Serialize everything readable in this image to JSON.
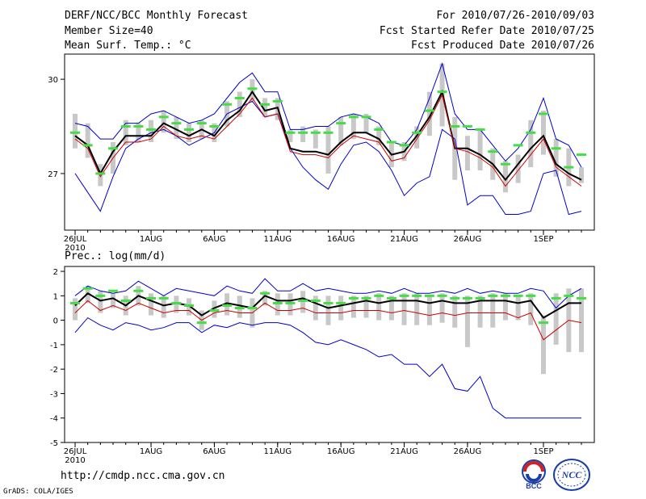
{
  "header": {
    "title": "DERF/NCC/BCC Monthly Forecast",
    "member_size": "Member Size=40",
    "for_range": "For 2010/07/26-2010/09/03",
    "fcst_started": "Fcst Started Refer Date 2010/07/25",
    "fcst_produced": "Fcst Produced Date 2010/07/26"
  },
  "footer": {
    "url": "http://cmdp.ncc.cma.gov.cn",
    "grads": "GrADS: COLA/IGES"
  },
  "logos": {
    "bcc_label": "BCC",
    "ncc_label": "NCC"
  },
  "colors": {
    "mean": "#000000",
    "median": "#cc0000",
    "envelope": "#0000cc",
    "bar": "#c8c8c8",
    "dash": "#44dd44"
  },
  "chart_data": [
    {
      "type": "line",
      "title": "Mean Surf. Temp.: °C",
      "days": 40,
      "ylim": [
        25.2,
        30.8
      ],
      "yticks": [
        27,
        30
      ],
      "x_tick_labels": [
        {
          "day": 0,
          "label": "26JUL"
        },
        {
          "day": 6,
          "label": "1AUG"
        },
        {
          "day": 11,
          "label": "6AUG"
        },
        {
          "day": 16,
          "label": "11AUG"
        },
        {
          "day": 21,
          "label": "16AUG"
        },
        {
          "day": 26,
          "label": "21AUG"
        },
        {
          "day": 31,
          "label": "26AUG"
        },
        {
          "day": 37,
          "label": "1SEP"
        }
      ],
      "year_label": "2010",
      "series": [
        {
          "name": "max",
          "values": [
            27.0,
            26.4,
            25.8,
            26.9,
            27.8,
            28.1,
            28.3,
            28.4,
            28.2,
            27.9,
            28.1,
            28.3,
            28.9,
            29.1,
            29.3,
            28.8,
            28.9,
            27.8,
            27.2,
            26.8,
            26.5,
            27.3,
            27.9,
            28.0,
            27.7,
            27.1,
            26.3,
            26.7,
            26.9,
            28.4,
            28.1,
            26.0,
            26.3,
            26.3,
            25.7,
            25.7,
            25.8,
            27.0,
            27.1,
            25.7,
            25.8
          ]
        },
        {
          "name": "min",
          "values": [
            28.6,
            28.5,
            28.1,
            28.1,
            28.6,
            28.6,
            28.9,
            29.0,
            28.8,
            28.6,
            28.7,
            28.9,
            29.4,
            29.9,
            30.2,
            29.6,
            29.6,
            28.4,
            28.4,
            28.5,
            28.5,
            28.8,
            28.9,
            28.8,
            28.6,
            28.0,
            27.9,
            28.4,
            29.4,
            30.5,
            28.9,
            28.4,
            28.4,
            27.9,
            27.4,
            27.8,
            28.4,
            29.4,
            28.1,
            27.9,
            27.2
          ]
        },
        {
          "name": "mean",
          "values": [
            28.2,
            27.9,
            27.0,
            27.7,
            28.2,
            28.2,
            28.2,
            28.6,
            28.4,
            28.2,
            28.4,
            28.2,
            28.7,
            29.0,
            29.6,
            29.0,
            29.1,
            27.8,
            27.7,
            27.7,
            27.6,
            28.0,
            28.3,
            28.3,
            28.1,
            27.6,
            27.7,
            28.2,
            28.8,
            29.6,
            27.8,
            27.8,
            27.6,
            27.3,
            26.8,
            27.3,
            27.8,
            28.2,
            27.3,
            27.0,
            26.8
          ]
        },
        {
          "name": "median",
          "values": [
            28.1,
            27.8,
            26.9,
            27.5,
            28.0,
            28.0,
            28.1,
            28.5,
            28.2,
            28.1,
            28.2,
            28.1,
            28.5,
            28.9,
            29.4,
            28.8,
            28.9,
            27.7,
            27.6,
            27.6,
            27.5,
            27.9,
            28.2,
            28.1,
            28.0,
            27.4,
            27.5,
            28.1,
            28.7,
            29.5,
            27.8,
            27.7,
            27.5,
            27.2,
            26.6,
            27.1,
            27.6,
            28.1,
            27.2,
            26.9,
            26.6
          ]
        },
        {
          "name": "ensemble_green",
          "values": [
            28.3,
            27.9,
            27.0,
            27.8,
            28.5,
            28.5,
            28.4,
            28.8,
            28.6,
            28.4,
            28.6,
            28.5,
            29.2,
            29.4,
            29.7,
            29.2,
            29.3,
            28.3,
            28.3,
            28.3,
            28.3,
            28.6,
            28.8,
            28.8,
            28.4,
            28.0,
            27.9,
            28.3,
            29.0,
            29.6,
            28.5,
            28.5,
            28.4,
            27.7,
            27.3,
            27.9,
            28.3,
            28.9,
            27.8,
            27.2,
            27.6
          ]
        }
      ],
      "bars": [
        {
          "low": 27.8,
          "high": 28.9
        },
        {
          "low": 27.5,
          "high": 28.6
        },
        {
          "low": 26.6,
          "high": 27.3
        },
        {
          "low": 27.0,
          "high": 28.0
        },
        {
          "low": 27.9,
          "high": 28.7
        },
        {
          "low": 28.0,
          "high": 28.6
        },
        {
          "low": 28.0,
          "high": 28.7
        },
        {
          "low": 28.3,
          "high": 29.0
        },
        {
          "low": 28.1,
          "high": 28.8
        },
        {
          "low": 28.0,
          "high": 28.6
        },
        {
          "low": 28.1,
          "high": 28.7
        },
        {
          "low": 28.0,
          "high": 28.6
        },
        {
          "low": 28.5,
          "high": 29.3
        },
        {
          "low": 28.8,
          "high": 29.6
        },
        {
          "low": 29.3,
          "high": 30.0
        },
        {
          "low": 28.8,
          "high": 29.4
        },
        {
          "low": 28.7,
          "high": 29.4
        },
        {
          "low": 28.0,
          "high": 28.4
        },
        {
          "low": 28.0,
          "high": 28.5
        },
        {
          "low": 27.8,
          "high": 28.4
        },
        {
          "low": 27.0,
          "high": 28.5
        },
        {
          "low": 27.9,
          "high": 28.8
        },
        {
          "low": 28.1,
          "high": 28.9
        },
        {
          "low": 28.3,
          "high": 28.9
        },
        {
          "low": 27.9,
          "high": 28.5
        },
        {
          "low": 27.2,
          "high": 28.0
        },
        {
          "low": 27.4,
          "high": 28.0
        },
        {
          "low": 27.8,
          "high": 28.5
        },
        {
          "low": 28.2,
          "high": 29.6
        },
        {
          "low": 28.5,
          "high": 30.5
        },
        {
          "low": 26.8,
          "high": 28.8
        },
        {
          "low": 27.1,
          "high": 28.2
        },
        {
          "low": 27.1,
          "high": 28.4
        },
        {
          "low": 26.8,
          "high": 27.8
        },
        {
          "low": 26.4,
          "high": 27.4
        },
        {
          "low": 26.7,
          "high": 27.6
        },
        {
          "low": 27.2,
          "high": 28.7
        },
        {
          "low": 27.6,
          "high": 29.0
        },
        {
          "low": 26.9,
          "high": 28.1
        },
        {
          "low": 26.6,
          "high": 27.8
        },
        {
          "low": 26.7,
          "high": 27.2
        }
      ]
    },
    {
      "type": "line",
      "title": "Prec.: log(mm/d)",
      "days": 40,
      "ylim": [
        -5,
        2.2
      ],
      "yticks": [
        -5,
        -4,
        -3,
        -2,
        -1,
        0,
        1,
        2
      ],
      "x_tick_labels": [
        {
          "day": 0,
          "label": "26JUL"
        },
        {
          "day": 6,
          "label": "1AUG"
        },
        {
          "day": 11,
          "label": "6AUG"
        },
        {
          "day": 16,
          "label": "11AUG"
        },
        {
          "day": 21,
          "label": "16AUG"
        },
        {
          "day": 26,
          "label": "21AUG"
        },
        {
          "day": 31,
          "label": "26AUG"
        },
        {
          "day": 37,
          "label": "1SEP"
        }
      ],
      "year_label": "2010",
      "series": [
        {
          "name": "max",
          "values": [
            1.0,
            1.4,
            1.2,
            1.1,
            1.2,
            1.6,
            1.3,
            1.0,
            1.3,
            1.2,
            1.1,
            1.0,
            1.4,
            1.2,
            1.1,
            1.7,
            1.2,
            1.2,
            1.5,
            1.2,
            1.3,
            1.2,
            1.1,
            1.1,
            1.2,
            1.1,
            1.3,
            1.1,
            1.1,
            1.2,
            1.1,
            1.3,
            1.1,
            1.2,
            1.1,
            1.1,
            1.3,
            1.2,
            0.5,
            1.0,
            1.3
          ]
        },
        {
          "name": "min",
          "values": [
            -0.5,
            0.1,
            -0.2,
            -0.4,
            -0.1,
            -0.2,
            -0.4,
            -0.3,
            -0.1,
            -0.1,
            -0.5,
            -0.2,
            -0.3,
            -0.1,
            -0.2,
            -0.1,
            -0.1,
            -0.2,
            -0.5,
            -0.9,
            -1.0,
            -0.8,
            -1.0,
            -1.2,
            -1.5,
            -1.4,
            -1.8,
            -1.8,
            -2.3,
            -1.8,
            -2.8,
            -2.9,
            -2.3,
            -3.6,
            -4.0,
            -4.0,
            -4.0,
            -4.0,
            -4.0,
            -4.0,
            -4.0
          ]
        },
        {
          "name": "mean",
          "values": [
            0.6,
            1.1,
            0.8,
            0.9,
            0.6,
            1.0,
            0.8,
            0.6,
            0.7,
            0.6,
            0.2,
            0.5,
            0.7,
            0.6,
            0.5,
            1.0,
            0.8,
            0.8,
            0.9,
            0.7,
            0.5,
            0.6,
            0.7,
            0.8,
            0.7,
            0.8,
            0.8,
            0.8,
            0.7,
            0.8,
            0.7,
            0.7,
            0.8,
            0.8,
            0.8,
            0.7,
            0.8,
            0.1,
            0.4,
            0.7,
            0.7
          ]
        },
        {
          "name": "median",
          "values": [
            0.3,
            0.8,
            0.4,
            0.6,
            0.4,
            0.7,
            0.5,
            0.3,
            0.4,
            0.4,
            0.0,
            0.3,
            0.4,
            0.3,
            0.3,
            0.7,
            0.4,
            0.4,
            0.5,
            0.3,
            0.3,
            0.3,
            0.4,
            0.4,
            0.4,
            0.3,
            0.4,
            0.3,
            0.2,
            0.3,
            0.2,
            0.3,
            0.3,
            0.3,
            0.3,
            0.1,
            0.3,
            -0.8,
            -0.4,
            0.0,
            -0.1
          ]
        },
        {
          "name": "ensemble_green",
          "values": [
            0.7,
            1.3,
            1.0,
            1.2,
            0.8,
            1.2,
            0.9,
            0.9,
            0.7,
            0.6,
            -0.1,
            0.4,
            0.6,
            0.5,
            0.5,
            1.1,
            0.7,
            0.7,
            0.8,
            0.8,
            0.7,
            0.7,
            0.9,
            0.9,
            1.0,
            0.9,
            1.0,
            1.0,
            1.0,
            1.0,
            0.9,
            0.9,
            0.9,
            1.0,
            1.0,
            1.0,
            1.0,
            -0.1,
            0.9,
            1.0,
            0.9
          ]
        }
      ],
      "bars": [
        {
          "low": 0.0,
          "high": 0.9
        },
        {
          "low": 0.7,
          "high": 1.4
        },
        {
          "low": 0.3,
          "high": 1.2
        },
        {
          "low": 0.5,
          "high": 1.1
        },
        {
          "low": 0.2,
          "high": 1.0
        },
        {
          "low": 0.6,
          "high": 1.4
        },
        {
          "low": 0.2,
          "high": 1.1
        },
        {
          "low": 0.1,
          "high": 1.0
        },
        {
          "low": 0.3,
          "high": 1.0
        },
        {
          "low": 0.2,
          "high": 0.9
        },
        {
          "low": -0.4,
          "high": 0.4
        },
        {
          "low": 0.1,
          "high": 0.8
        },
        {
          "low": 0.2,
          "high": 1.1
        },
        {
          "low": 0.1,
          "high": 1.0
        },
        {
          "low": -0.3,
          "high": 0.9
        },
        {
          "low": 0.6,
          "high": 1.2
        },
        {
          "low": 0.2,
          "high": 1.1
        },
        {
          "low": 0.2,
          "high": 1.1
        },
        {
          "low": 0.3,
          "high": 1.2
        },
        {
          "low": 0.0,
          "high": 1.0
        },
        {
          "low": -0.2,
          "high": 1.0
        },
        {
          "low": 0.0,
          "high": 1.0
        },
        {
          "low": 0.1,
          "high": 1.0
        },
        {
          "low": 0.1,
          "high": 1.0
        },
        {
          "low": 0.0,
          "high": 1.1
        },
        {
          "low": 0.0,
          "high": 1.0
        },
        {
          "low": -0.2,
          "high": 1.1
        },
        {
          "low": -0.2,
          "high": 1.1
        },
        {
          "low": -0.2,
          "high": 1.0
        },
        {
          "low": -0.1,
          "high": 1.1
        },
        {
          "low": -0.3,
          "high": 1.0
        },
        {
          "low": -1.1,
          "high": 1.0
        },
        {
          "low": -0.3,
          "high": 1.0
        },
        {
          "low": -0.3,
          "high": 1.1
        },
        {
          "low": 0.0,
          "high": 1.1
        },
        {
          "low": 0.0,
          "high": 1.0
        },
        {
          "low": -0.2,
          "high": 1.1
        },
        {
          "low": -2.2,
          "high": 0.2
        },
        {
          "low": -1.0,
          "high": 1.1
        },
        {
          "low": -1.3,
          "high": 1.3
        },
        {
          "low": -1.3,
          "high": 1.3
        }
      ]
    }
  ]
}
